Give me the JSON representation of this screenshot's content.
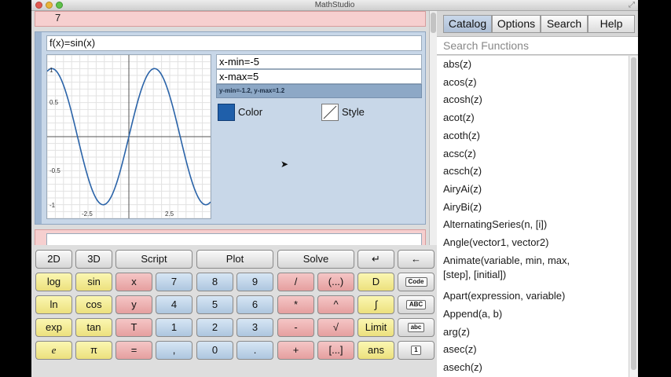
{
  "window": {
    "title": "MathStudio"
  },
  "previous_cell": {
    "value": "7"
  },
  "plot": {
    "function": "f(x)=sin(x)",
    "x_min_label": "x-min=-5",
    "x_max_label": "x-max=5",
    "y_range_label": "y-min=-1.2, y-max=1.2",
    "color_label": "Color",
    "style_label": "Style",
    "line_color": "#2a63a8",
    "y_tick_labels": [
      "1",
      "0.5",
      "-0.5",
      "-1"
    ],
    "x_tick_labels": [
      "-2.5",
      "2.5"
    ]
  },
  "keypad": {
    "row1": [
      "2D",
      "3D",
      "Script",
      "Plot",
      "Solve",
      "↵",
      "←"
    ],
    "row2": [
      "log",
      "sin",
      "x",
      "7",
      "8",
      "9",
      "/",
      "(...)",
      "D",
      "Code"
    ],
    "row3": [
      "ln",
      "cos",
      "y",
      "4",
      "5",
      "6",
      "*",
      "^",
      "∫",
      "ABC"
    ],
    "row4": [
      "exp",
      "tan",
      "T",
      "1",
      "2",
      "3",
      "-",
      "√",
      "Limit",
      "abc"
    ],
    "row5": [
      "e",
      "π",
      "=",
      ",",
      "0",
      ".",
      "+",
      "[...]",
      "ans",
      "1"
    ]
  },
  "tabs": [
    "Catalog",
    "Options",
    "Search",
    "Help"
  ],
  "search": {
    "placeholder": "Search Functions"
  },
  "functions": [
    "abs(z)",
    "acos(z)",
    "acosh(z)",
    "acot(z)",
    "acoth(z)",
    "acsc(z)",
    "acsch(z)",
    "AiryAi(z)",
    "AiryBi(z)",
    "AlternatingSeries(n, [i])",
    "Angle(vector1, vector2)",
    "Animate(variable, min, max,",
    "[step], [initial])",
    "Apart(expression, variable)",
    "Append(a, b)",
    "arg(z)",
    "asec(z)",
    "asech(z)"
  ]
}
